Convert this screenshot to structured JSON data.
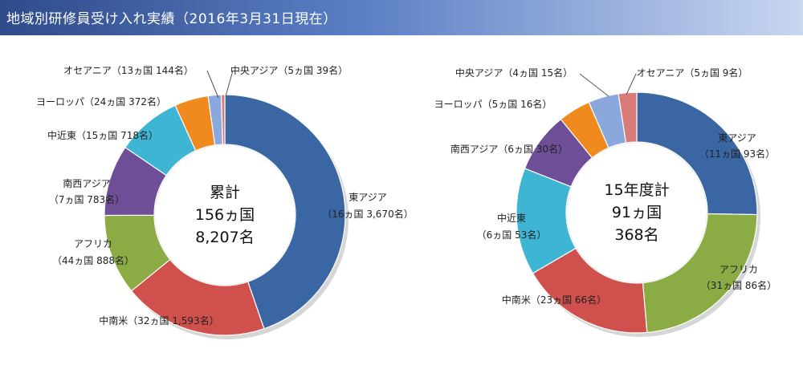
{
  "page_title": "地域別研修員受け入れ実績（2016年3月31日現在）",
  "chart_data": [
    {
      "type": "pie",
      "donut": true,
      "center_text": [
        "累計",
        "156ヵ国",
        "8,207名"
      ],
      "slices": [
        {
          "name": "東アジア",
          "detail": "（16ヵ国 3,670名）",
          "value": 3670,
          "color": "#3a66a4"
        },
        {
          "name": "中南米",
          "detail": "（32ヵ国 1,593名）",
          "value": 1593,
          "color": "#d0504e"
        },
        {
          "name": "アフリカ",
          "detail": "（44ヵ国 888名）",
          "value": 888,
          "color": "#8bab45"
        },
        {
          "name": "南西アジア",
          "detail": "（7ヵ国 783名）",
          "value": 783,
          "color": "#6d4e97"
        },
        {
          "name": "中近東",
          "detail": "（15ヵ国 718名）",
          "value": 718,
          "color": "#3db5d3"
        },
        {
          "name": "ヨーロッパ",
          "detail": "（24ヵ国 372名）",
          "value": 372,
          "color": "#f08a1e"
        },
        {
          "name": "オセアニア",
          "detail": "（13ヵ国 144名）",
          "value": 144,
          "color": "#8aa8db"
        },
        {
          "name": "中央アジア",
          "detail": "（5ヵ国 39名）",
          "value": 39,
          "color": "#d97b78"
        }
      ]
    },
    {
      "type": "pie",
      "donut": true,
      "center_text": [
        "15年度計",
        "91ヵ国",
        "368名"
      ],
      "slices": [
        {
          "name": "東アジア",
          "detail": "（11ヵ国 93名）",
          "value": 93,
          "color": "#3a66a4"
        },
        {
          "name": "アフリカ",
          "detail": "（31ヵ国 86名）",
          "value": 86,
          "color": "#8bab45"
        },
        {
          "name": "中南米",
          "detail": "（23ヵ国 66名）",
          "value": 66,
          "color": "#d0504e"
        },
        {
          "name": "中近東",
          "detail": "（6ヵ国 53名）",
          "value": 53,
          "color": "#3db5d3"
        },
        {
          "name": "南西アジア",
          "detail": "（6ヵ国 30名）",
          "value": 30,
          "color": "#6d4e97"
        },
        {
          "name": "ヨーロッパ",
          "detail": "（5ヵ国 16名）",
          "value": 16,
          "color": "#f08a1e"
        },
        {
          "name": "中央アジア",
          "detail": "（4ヵ国 15名）",
          "value": 15,
          "color": "#8aa8db"
        },
        {
          "name": "オセアニア",
          "detail": "（5ヵ国 9名）",
          "value": 9,
          "color": "#d97b78"
        }
      ]
    }
  ]
}
